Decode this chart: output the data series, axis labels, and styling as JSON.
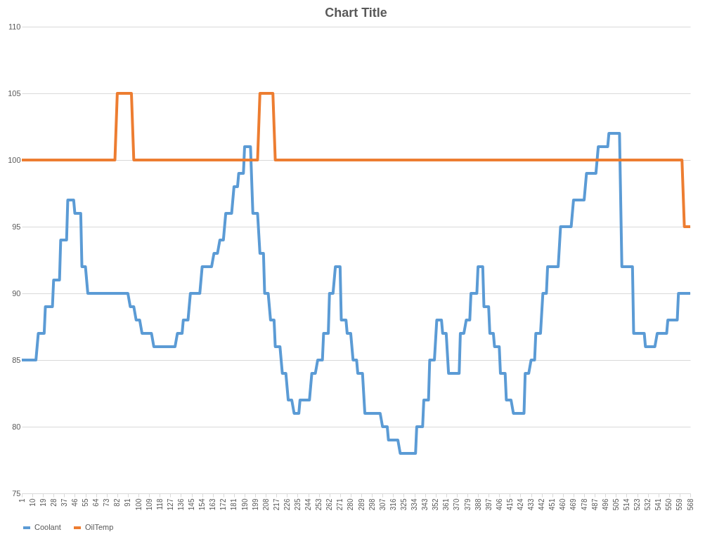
{
  "chart_data": {
    "type": "line",
    "title": "Chart Title",
    "xlim": [
      1,
      568
    ],
    "ylim": [
      75,
      110
    ],
    "xticks": [
      1,
      10,
      19,
      28,
      37,
      46,
      55,
      64,
      73,
      82,
      91,
      100,
      109,
      118,
      127,
      136,
      145,
      154,
      163,
      172,
      181,
      190,
      199,
      208,
      217,
      226,
      235,
      244,
      253,
      262,
      271,
      280,
      289,
      298,
      307,
      316,
      325,
      334,
      343,
      352,
      361,
      370,
      379,
      388,
      397,
      406,
      415,
      424,
      433,
      442,
      451,
      460,
      469,
      478,
      487,
      496,
      505,
      514,
      523,
      532,
      541,
      550,
      559,
      568
    ],
    "yticks": [
      75,
      80,
      85,
      90,
      95,
      100,
      105,
      110
    ],
    "grid": "y",
    "legend": "bottom",
    "marker": "none",
    "line_style": "solid",
    "series": [
      {
        "name": "Coolant",
        "color": "#5b9bd5",
        "x": [
          1,
          13,
          15,
          20,
          21,
          27,
          28,
          33,
          34,
          39,
          40,
          45,
          46,
          51,
          52,
          55,
          57,
          91,
          93,
          96,
          98,
          101,
          103,
          111,
          113,
          131,
          133,
          137,
          138,
          142,
          144,
          152,
          154,
          162,
          164,
          167,
          169,
          172,
          174,
          179,
          181,
          184,
          185,
          189,
          190,
          195,
          197,
          201,
          203,
          206,
          207,
          210,
          212,
          215,
          216,
          220,
          222,
          225,
          227,
          230,
          232,
          236,
          237,
          245,
          247,
          250,
          252,
          256,
          257,
          261,
          262,
          265,
          267,
          271,
          272,
          276,
          277,
          280,
          282,
          285,
          286,
          290,
          292,
          305,
          307,
          311,
          312,
          320,
          322,
          335,
          336,
          341,
          342,
          346,
          347,
          351,
          353,
          357,
          358,
          361,
          363,
          372,
          373,
          376,
          378,
          381,
          382,
          387,
          388,
          392,
          393,
          397,
          398,
          401,
          402,
          406,
          407,
          411,
          412,
          416,
          418,
          427,
          428,
          431,
          433,
          436,
          437,
          441,
          443,
          446,
          447,
          456,
          458,
          467,
          469,
          478,
          480,
          488,
          490,
          498,
          499,
          508,
          510,
          519,
          520,
          529,
          530,
          538,
          540,
          548,
          549,
          557,
          558,
          568
        ],
        "values": [
          85,
          85,
          87,
          87,
          89,
          89,
          91,
          91,
          94,
          94,
          97,
          97,
          96,
          96,
          92,
          92,
          90,
          90,
          89,
          89,
          88,
          88,
          87,
          87,
          86,
          86,
          87,
          87,
          88,
          88,
          90,
          90,
          92,
          92,
          93,
          93,
          94,
          94,
          96,
          96,
          98,
          98,
          99,
          99,
          101,
          101,
          96,
          96,
          93,
          93,
          90,
          90,
          88,
          88,
          86,
          86,
          84,
          84,
          82,
          82,
          81,
          81,
          82,
          82,
          84,
          84,
          85,
          85,
          87,
          87,
          90,
          90,
          92,
          92,
          88,
          88,
          87,
          87,
          85,
          85,
          84,
          84,
          81,
          81,
          80,
          80,
          79,
          79,
          78,
          78,
          80,
          80,
          82,
          82,
          85,
          85,
          88,
          88,
          87,
          87,
          84,
          84,
          87,
          87,
          88,
          88,
          90,
          90,
          92,
          92,
          89,
          89,
          87,
          87,
          86,
          86,
          84,
          84,
          82,
          82,
          81,
          81,
          84,
          84,
          85,
          85,
          87,
          87,
          90,
          90,
          92,
          92,
          95,
          95,
          97,
          97,
          99,
          99,
          101,
          101,
          102,
          102,
          92,
          92,
          87,
          87,
          86,
          86,
          87,
          87,
          88,
          88,
          90,
          90
        ]
      },
      {
        "name": "OilTemp",
        "color": "#ed7d31",
        "x": [
          1,
          80,
          82,
          94,
          96,
          201,
          203,
          214,
          216,
          561,
          563,
          568
        ],
        "values": [
          100,
          100,
          105,
          105,
          100,
          100,
          105,
          105,
          100,
          100,
          95,
          95
        ]
      }
    ]
  }
}
